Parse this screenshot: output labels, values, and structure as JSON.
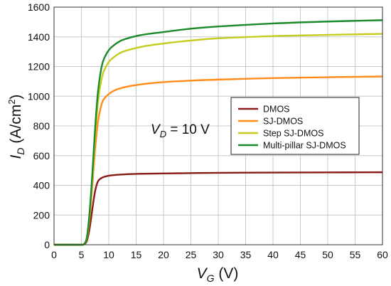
{
  "chart_data": {
    "type": "line",
    "grid": true,
    "legend_placement": "center-right",
    "xlim": [
      0,
      60
    ],
    "ylim": [
      0,
      1600
    ],
    "x_ticks": [
      0,
      5,
      10,
      15,
      20,
      25,
      30,
      35,
      40,
      45,
      50,
      55,
      60
    ],
    "y_ticks": [
      0,
      200,
      400,
      600,
      800,
      1000,
      1200,
      1400,
      1600
    ],
    "xlabel": {
      "main": "V",
      "sub": "G",
      "unit": " (V)"
    },
    "ylabel": {
      "main": "I",
      "sub": "D",
      "unit_pre": " (A/cm",
      "unit_sup": "2",
      "unit_post": ")"
    },
    "annotation": {
      "main": "V",
      "sub": "D",
      "rest": " = 10 V"
    },
    "series": [
      {
        "name": "DMOS",
        "color": "#8b1a1a",
        "x": [
          0,
          4,
          5,
          5.5,
          6,
          6.5,
          7,
          7.5,
          8,
          8.5,
          9,
          10,
          12,
          15,
          20,
          30,
          40,
          50,
          60
        ],
        "y": [
          0,
          0,
          0,
          3,
          25,
          110,
          240,
          360,
          425,
          445,
          455,
          465,
          472,
          477,
          480,
          484,
          486,
          487,
          488
        ]
      },
      {
        "name": "SJ-DMOS",
        "color": "#ff8c1a",
        "x": [
          0,
          4,
          5,
          5.5,
          6,
          6.5,
          7,
          7.5,
          8,
          8.5,
          9,
          10,
          11,
          12,
          13,
          15,
          17,
          20,
          25,
          30,
          40,
          50,
          60
        ],
        "y": [
          0,
          0,
          0,
          5,
          40,
          180,
          400,
          640,
          820,
          920,
          975,
          1015,
          1038,
          1052,
          1062,
          1075,
          1085,
          1095,
          1105,
          1112,
          1122,
          1128,
          1133
        ]
      },
      {
        "name": "Step SJ-DMOS",
        "color": "#c6cc1e",
        "x": [
          0,
          4,
          5,
          5.5,
          6,
          6.5,
          7,
          7.5,
          8,
          8.5,
          9,
          10,
          11,
          12,
          13,
          15,
          17,
          20,
          25,
          30,
          40,
          50,
          60
        ],
        "y": [
          0,
          0,
          0,
          5,
          45,
          200,
          440,
          720,
          950,
          1080,
          1160,
          1230,
          1265,
          1290,
          1305,
          1325,
          1340,
          1355,
          1375,
          1390,
          1405,
          1413,
          1420
        ]
      },
      {
        "name": "Multi-pillar SJ-DMOS",
        "color": "#1a8a2a",
        "x": [
          0,
          4,
          5,
          5.5,
          6,
          6.5,
          7,
          7.5,
          8,
          8.5,
          9,
          10,
          11,
          12,
          13,
          15,
          17,
          20,
          25,
          30,
          40,
          50,
          60
        ],
        "y": [
          0,
          0,
          0,
          5,
          50,
          220,
          480,
          780,
          1020,
          1160,
          1240,
          1310,
          1345,
          1370,
          1385,
          1405,
          1418,
          1432,
          1455,
          1470,
          1490,
          1503,
          1512
        ]
      }
    ]
  }
}
